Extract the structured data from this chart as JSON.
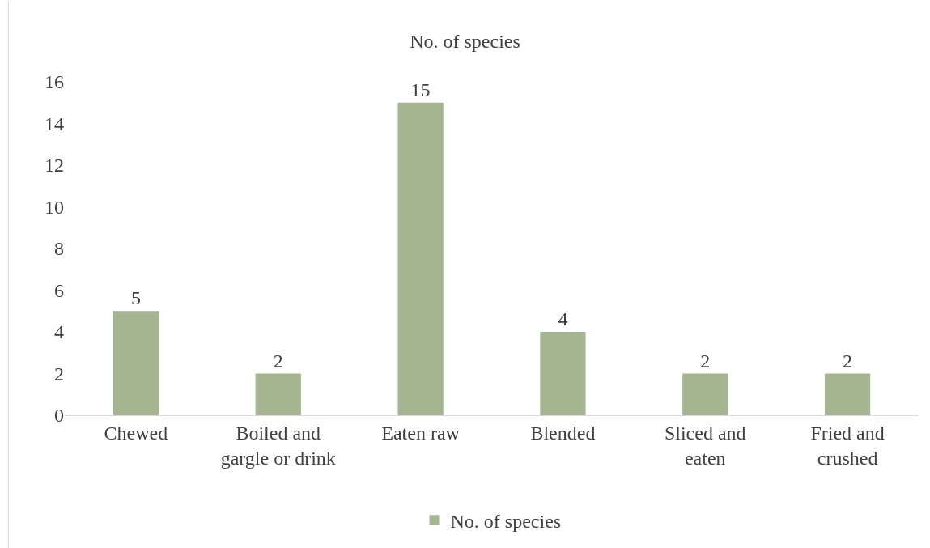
{
  "chart_data": {
    "type": "bar",
    "title": "No. of species",
    "categories": [
      "Chewed",
      "Boiled and gargle or drink",
      "Eaten raw",
      "Blended",
      "Sliced and eaten",
      "Fried and crushed"
    ],
    "series": [
      {
        "name": "No. of species",
        "color": "#a5b592",
        "values": [
          5,
          2,
          15,
          4,
          2,
          2
        ]
      }
    ],
    "ylim": [
      0,
      16
    ],
    "yticks": [
      0,
      2,
      4,
      6,
      8,
      10,
      12,
      14,
      16
    ],
    "grid": false,
    "data_labels": true,
    "legend": "bottom"
  }
}
